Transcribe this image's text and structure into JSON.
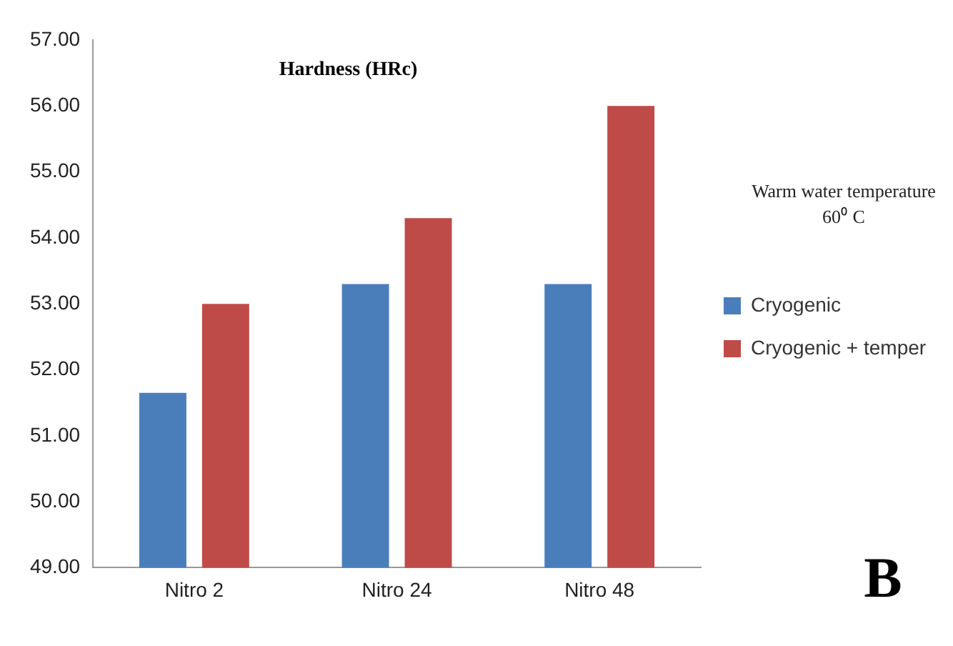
{
  "chart_data": {
    "type": "bar",
    "title": "Hardness (HRc)",
    "categories": [
      "Nitro 2",
      "Nitro 24",
      "Nitro 48"
    ],
    "series": [
      {
        "name": "Cryogenic",
        "color": "#4a7ebb",
        "values": [
          51.65,
          53.3,
          53.3
        ]
      },
      {
        "name": "Cryogenic + temper",
        "color": "#be4b48",
        "values": [
          53.0,
          54.3,
          56.0
        ]
      }
    ],
    "ylim": [
      49,
      57
    ],
    "yticks": [
      {
        "value": 49,
        "label": "49.00"
      },
      {
        "value": 50,
        "label": "50.00"
      },
      {
        "value": 51,
        "label": "51.00"
      },
      {
        "value": 52,
        "label": "52.00"
      },
      {
        "value": 53,
        "label": "53.00"
      },
      {
        "value": 54,
        "label": "54.00"
      },
      {
        "value": 55,
        "label": "55.00"
      },
      {
        "value": 56,
        "label": "56.00"
      },
      {
        "value": 57,
        "label": "57.00"
      }
    ],
    "grid": false,
    "legend": "right",
    "annotations": [
      "Warm water temperature 60⁰ C",
      "B"
    ]
  }
}
